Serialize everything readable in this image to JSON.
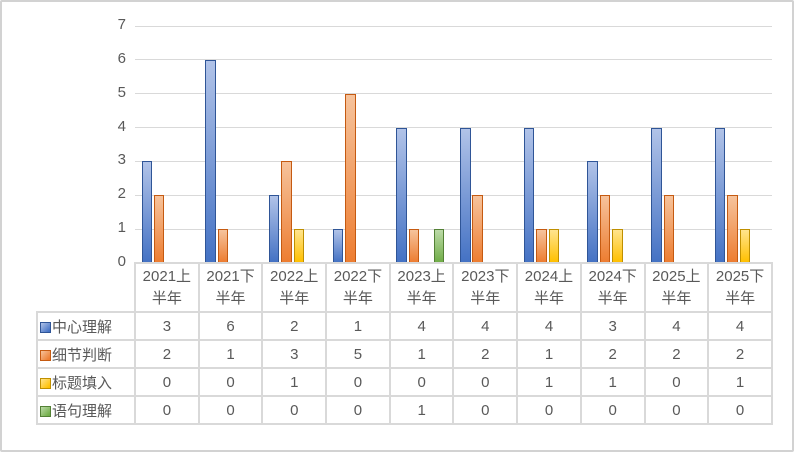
{
  "chart_data": {
    "type": "bar",
    "title": "",
    "xlabel": "",
    "ylabel": "",
    "categories": [
      "2021上半年",
      "2021下半年",
      "2022上半年",
      "2022下半年",
      "2023上半年",
      "2023下半年",
      "2024上半年",
      "2024下半年",
      "2025上半年",
      "2025下半年"
    ],
    "series": [
      {
        "name": "中心理解",
        "values": [
          3,
          6,
          2,
          1,
          4,
          4,
          4,
          3,
          4,
          4
        ],
        "color": "#4472C4",
        "color_light": "#b1c3e8",
        "border_color": "#2f5597"
      },
      {
        "name": "细节判断",
        "values": [
          2,
          1,
          3,
          5,
          1,
          2,
          1,
          2,
          2,
          2
        ],
        "color": "#ED7D31",
        "color_light": "#f6c39c",
        "border_color": "#c55a11"
      },
      {
        "name": "标题填入",
        "values": [
          0,
          0,
          1,
          0,
          0,
          0,
          1,
          1,
          0,
          1
        ],
        "color": "#FFC000",
        "color_light": "#ffe48e",
        "border_color": "#bf8f00"
      },
      {
        "name": "语句理解",
        "values": [
          0,
          0,
          0,
          0,
          1,
          0,
          0,
          0,
          0,
          0
        ],
        "color": "#70AD47",
        "color_light": "#bcdaa8",
        "border_color": "#538135"
      }
    ],
    "ylim": [
      0,
      7
    ],
    "yticks": [
      0,
      1,
      2,
      3,
      4,
      5,
      6,
      7
    ],
    "grid": true,
    "legend_position": "data-table-left-keys",
    "data_table_shown": true,
    "axis_text_color": "#595959",
    "gridline_color": "#d9d9d9",
    "table_border_color": "#d9d9d9"
  }
}
